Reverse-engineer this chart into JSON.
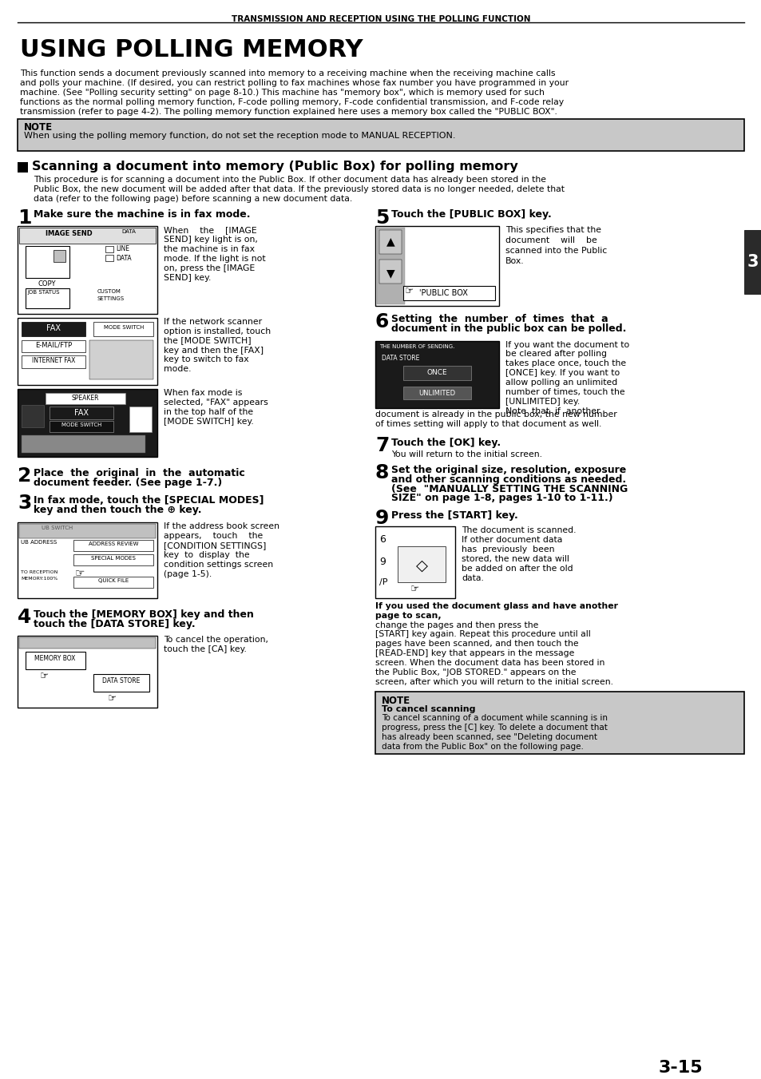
{
  "page_header": "TRANSMISSION AND RECEPTION USING THE POLLING FUNCTION",
  "main_title": "USING POLLING MEMORY",
  "intro_text": "This function sends a document previously scanned into memory to a receiving machine when the receiving machine calls\nand polls your machine. (If desired, you can restrict polling to fax machines whose fax number you have programmed in your\nmachine. (See \"Polling security setting\" on page 8-10.) This machine has \"memory box\", which is memory used for such\nfunctions as the normal polling memory function, F-code polling memory, F-code confidential transmission, and F-code relay\ntransmission (refer to page 4-2). The polling memory function explained here uses a memory box called the \"PUBLIC BOX\".",
  "note_label": "NOTE",
  "note_text": "When using the polling memory function, do not set the reception mode to MANUAL RECEPTION.",
  "section_title": "Scanning a document into memory (Public Box) for polling memory",
  "section_intro_1": "This procedure is for scanning a document into the Public Box. If other document data has already been stored in the",
  "section_intro_2": "Public Box, the new document will be added after that data. If the previously stored data is no longer needed, delete that",
  "section_intro_3": "data (refer to the following page) before scanning a new document data.",
  "step1_num": "1",
  "step1_title": "Make sure the machine is in fax mode.",
  "step1_text1_lines": [
    "When    the    [IMAGE",
    "SEND] key light is on,",
    "the machine is in fax",
    "mode. If the light is not",
    "on, press the [IMAGE",
    "SEND] key."
  ],
  "step1_text2_lines": [
    "If the network scanner",
    "option is installed, touch",
    "the [MODE SWITCH]",
    "key and then the [FAX]",
    "key to switch to fax",
    "mode."
  ],
  "step1_text3_lines": [
    "When fax mode is",
    "selected, \"FAX\" appears",
    "in the top half of the",
    "[MODE SWITCH] key."
  ],
  "step2_num": "2",
  "step2_title_1": "Place  the  original  in  the  automatic",
  "step2_title_2": "document feeder. (See page 1-7.)",
  "step3_num": "3",
  "step3_title_1": "In fax mode, touch the [SPECIAL MODES]",
  "step3_title_2": "key and then touch the ⊕ key.",
  "step3_text_lines": [
    "If the address book screen",
    "appears,    touch    the",
    "[CONDITION SETTINGS]",
    "key  to  display  the",
    "condition settings screen",
    "(page 1-5)."
  ],
  "step4_num": "4",
  "step4_title_1": "Touch the [MEMORY BOX] key and then",
  "step4_title_2": "touch the [DATA STORE] key.",
  "step4_text_lines": [
    "To cancel the operation,",
    "touch the [CA] key."
  ],
  "step5_num": "5",
  "step5_title": "Touch the [PUBLIC BOX] key.",
  "step5_text_lines": [
    "This specifies that the",
    "document    will    be",
    "scanned into the Public",
    "Box."
  ],
  "step6_num": "6",
  "step6_title_1": "Setting  the  number  of  times  that  a",
  "step6_title_2": "document in the public box can be polled.",
  "step6_text_lines": [
    "If you want the document to",
    "be cleared after polling",
    "takes place once, touch the",
    "[ONCE] key. If you want to",
    "allow polling an unlimited",
    "number of times, touch the",
    "[UNLIMITED] key.",
    "Note  that  if  another"
  ],
  "step6_text2_lines": [
    "document is already in the public box, the new number",
    "of times setting will apply to that document as well."
  ],
  "step7_num": "7",
  "step7_title": "Touch the [OK] key.",
  "step7_text": "You will return to the initial screen.",
  "step8_num": "8",
  "step8_title_1": "Set the original size, resolution, exposure",
  "step8_title_2": "and other scanning conditions as needed.",
  "step8_title_3": "(See  \"MANUALLY SETTING THE SCANNING",
  "step8_title_4": "SIZE\" on page 1-8, pages 1-10 to 1-11.)",
  "step9_num": "9",
  "step9_title": "Press the [START] key.",
  "step9_text_lines": [
    "The document is scanned.",
    "If other document data",
    "has  previously  been",
    "stored, the new data will",
    "be added on after the old",
    "data."
  ],
  "step9_bold_text": "If you used the document glass and have another",
  "step9_bold_text2": "page to scan,",
  "step9_extra_lines": [
    "change the pages and then press the",
    "[START] key again. Repeat this procedure until all",
    "pages have been scanned, and then touch the",
    "[READ-END] key that appears in the message",
    "screen. When the document data has been stored in",
    "the Public Box, \"JOB STORED.\" appears on the",
    "screen, after which you will return to the initial screen."
  ],
  "note2_label": "NOTE",
  "note2_title": "To cancel scanning",
  "note2_text_lines": [
    "To cancel scanning of a document while scanning is in",
    "progress, press the [C] key. To delete a document that",
    "has already been scanned, see \"Deleting document",
    "data from the Public Box\" on the following page."
  ],
  "page_num": "3-15",
  "tab_num": "3",
  "bg_color": "#ffffff",
  "note_bg_color": "#c8c8c8",
  "tab_bg_color": "#2a2a2a"
}
